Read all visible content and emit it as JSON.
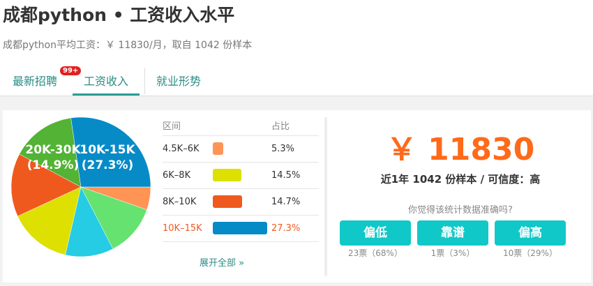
{
  "header": {
    "title": "成都python • 工资收入水平",
    "subtitle": "成都python平均工资：￥ 11830/月，取自 1042 份样本"
  },
  "tabs": [
    {
      "label": "最新招聘",
      "badge": "99+"
    },
    {
      "label": "工资收入",
      "active": true
    },
    {
      "label": "就业形势"
    }
  ],
  "chart_data": {
    "type": "pie",
    "slices": [
      {
        "label": "4.5K-6K",
        "value": 5.3,
        "color": "#ff9455"
      },
      {
        "label": "",
        "value": 12.1,
        "color": "#66e270"
      },
      {
        "label": "",
        "value": 11.2,
        "color": "#26cbe4"
      },
      {
        "label": "6K-8K",
        "value": 14.5,
        "color": "#dde000"
      },
      {
        "label": "8K-10K",
        "value": 14.7,
        "color": "#f0591e"
      },
      {
        "label": "20K-30K",
        "value": 14.9,
        "color": "#52b334"
      },
      {
        "label": "10K-15K",
        "value": 27.3,
        "color": "#078bc7"
      }
    ],
    "data_labels": [
      {
        "name": "20K-30K",
        "pct": "(14.9%)"
      },
      {
        "name": "10K-15K",
        "pct": "(27.3%)"
      }
    ]
  },
  "table": {
    "headers": [
      "区间",
      "占比"
    ],
    "rows": [
      {
        "range": "4.5K–6K",
        "pct": "5.3%",
        "value": 5.3,
        "color": "#ff9455"
      },
      {
        "range": "6K–8K",
        "pct": "14.5%",
        "value": 14.5,
        "color": "#dde000"
      },
      {
        "range": "8K–10K",
        "pct": "14.7%",
        "value": 14.7,
        "color": "#f0591e"
      },
      {
        "range": "10K–15K",
        "pct": "27.3%",
        "value": 27.3,
        "color": "#078bc7",
        "highlight": true
      }
    ],
    "expand": "展开全部 »"
  },
  "summary": {
    "salary": "￥ 11830",
    "info": "近1年 1042 份样本 / 可信度：高",
    "question": "你觉得该统计数据准确吗?"
  },
  "votes": [
    {
      "label": "偏低",
      "count": "23票（68%）"
    },
    {
      "label": "靠谱",
      "count": "1票（3%）"
    },
    {
      "label": "偏高",
      "count": "10票（29%）"
    }
  ]
}
